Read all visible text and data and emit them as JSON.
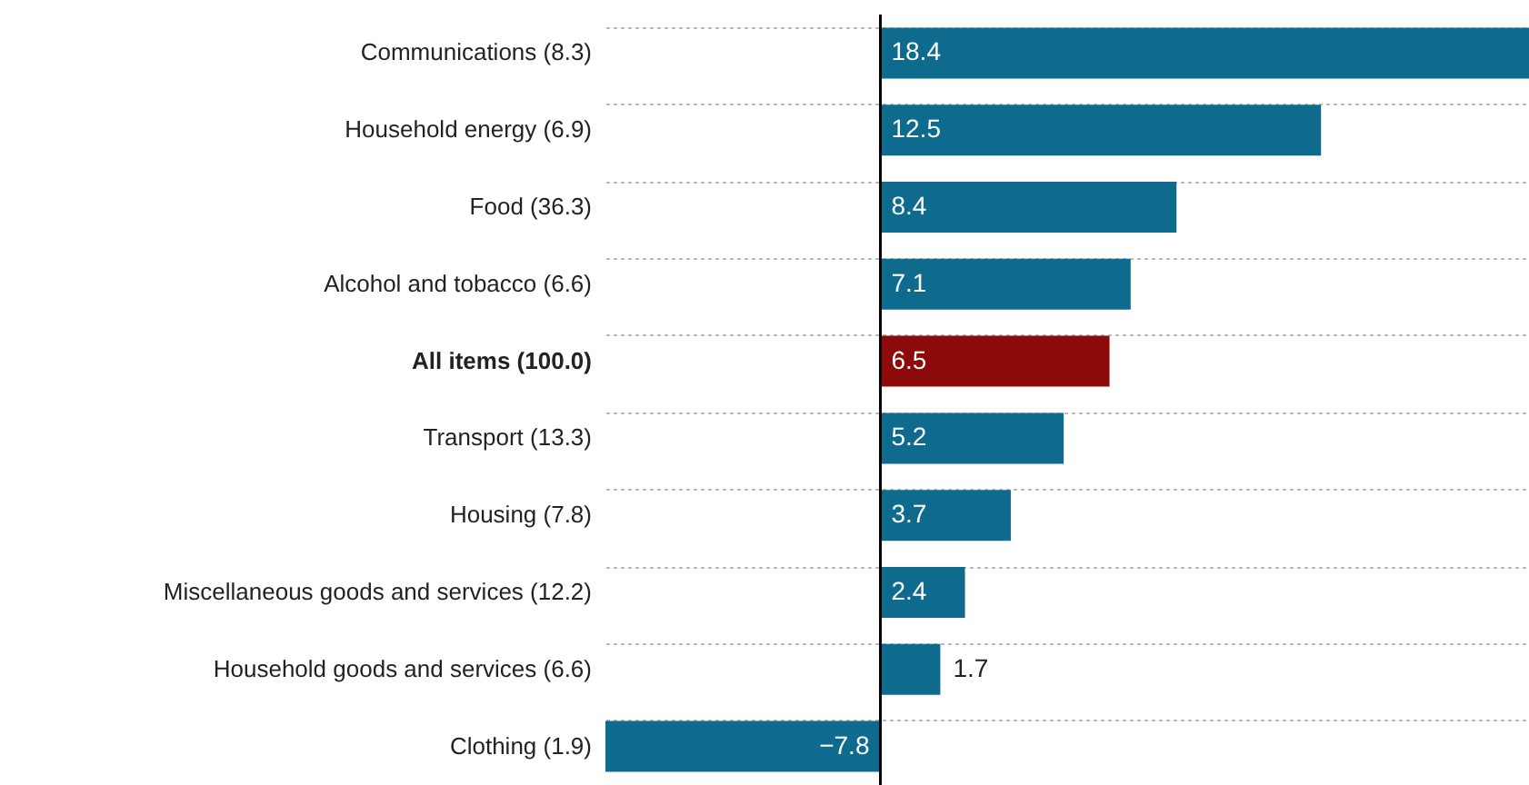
{
  "chart_data": {
    "type": "bar",
    "orientation": "horizontal",
    "categories": [
      "Communications (8.3)",
      "Household energy (6.9)",
      "Food (36.3)",
      "Alcohol and tobacco (6.6)",
      "All items (100.0)",
      "Transport (13.3)",
      "Housing (7.8)",
      "Miscellaneous goods and services (12.2)",
      "Household goods and services (6.6)",
      "Clothing (1.9)"
    ],
    "values": [
      18.4,
      12.5,
      8.4,
      7.1,
      6.5,
      5.2,
      3.7,
      2.4,
      1.7,
      -7.8
    ],
    "colors": [
      "#0e6b8e",
      "#0e6b8e",
      "#0e6b8e",
      "#0e6b8e",
      "#8c0a0a",
      "#0e6b8e",
      "#0e6b8e",
      "#0e6b8e",
      "#0e6b8e",
      "#0e6b8e"
    ],
    "xlim": [
      -7.8,
      18.4
    ],
    "data_labels": true,
    "grid": "y",
    "tick_labels": "y"
  }
}
